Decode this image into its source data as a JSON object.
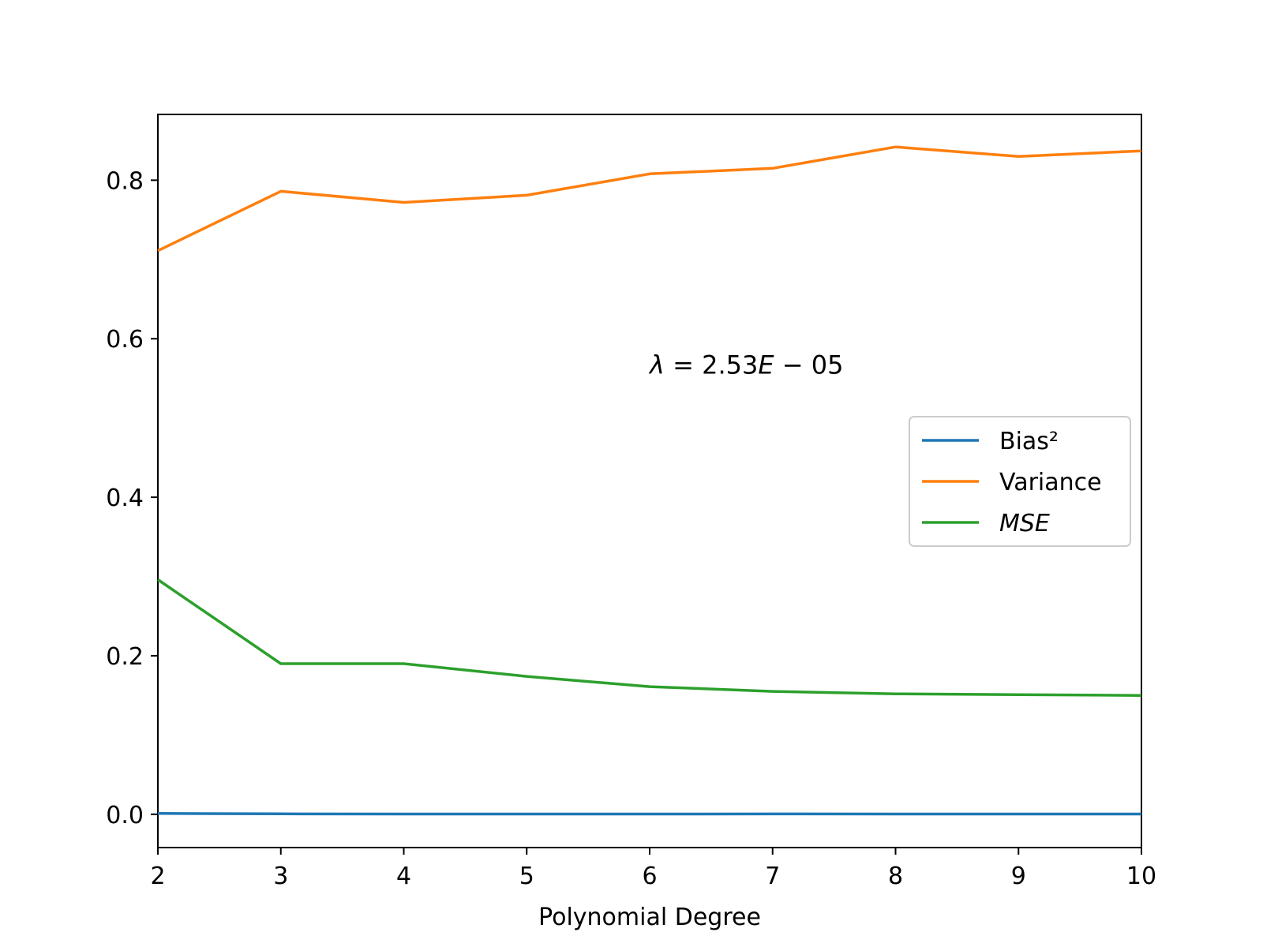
{
  "chart_data": {
    "type": "line",
    "title": "",
    "xlabel": "Polynomial Degree",
    "ylabel": "",
    "x": [
      2,
      3,
      4,
      5,
      6,
      7,
      8,
      9,
      10
    ],
    "xlim": [
      2,
      10
    ],
    "ylim": [
      -0.042,
      0.883
    ],
    "xticks": [
      2,
      3,
      4,
      5,
      6,
      7,
      8,
      9,
      10
    ],
    "yticks": [
      0.0,
      0.2,
      0.4,
      0.6,
      0.8
    ],
    "ytick_labels": [
      "0.0",
      "0.2",
      "0.4",
      "0.6",
      "0.8"
    ],
    "xtick_labels": [
      "2",
      "3",
      "4",
      "5",
      "6",
      "7",
      "8",
      "9",
      "10"
    ],
    "grid": false,
    "legend_position": "center-right",
    "annotation": {
      "parts": [
        {
          "text": "λ",
          "italic": true
        },
        {
          "text": " = 2.53",
          "italic": false
        },
        {
          "text": "E",
          "italic": true
        },
        {
          "text": " − 05",
          "italic": false
        }
      ],
      "x": 6.0,
      "y": 0.56
    },
    "series": [
      {
        "name": "Bias²",
        "italic": false,
        "color": "#1f77b4",
        "values": [
          0.001,
          0.0005,
          0.0003,
          0.0003,
          0.0003,
          0.0004,
          0.0003,
          0.0003,
          0.0003
        ]
      },
      {
        "name": "Variance",
        "italic": false,
        "color": "#ff7f0e",
        "values": [
          0.711,
          0.786,
          0.772,
          0.781,
          0.808,
          0.815,
          0.842,
          0.83,
          0.837
        ]
      },
      {
        "name": "MSE",
        "italic": true,
        "color": "#2ca02c",
        "values": [
          0.296,
          0.19,
          0.19,
          0.174,
          0.161,
          0.155,
          0.152,
          0.151,
          0.15
        ]
      }
    ]
  }
}
